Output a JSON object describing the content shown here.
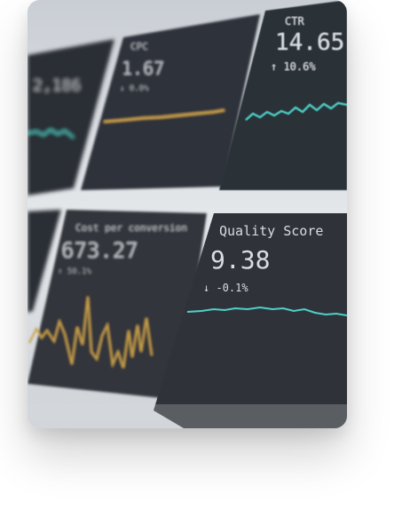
{
  "tiles": [
    {
      "id": "left-top",
      "value": "2,186"
    },
    {
      "id": "cpc",
      "title": "CPC",
      "value": "1.67",
      "change": "↓ 0.0%"
    },
    {
      "id": "ctr",
      "title": "CTR",
      "value": "14.65",
      "change": "↑ 10.6%"
    },
    {
      "id": "cost-per-conversion",
      "title": "Cost per conversion",
      "value": "673.27",
      "change": "↑ 50.1%"
    },
    {
      "id": "quality-score",
      "title": "Quality Score",
      "value": "9.38",
      "change": "↓ -0.1%"
    }
  ],
  "colors": {
    "panel": "#2d3138",
    "bezel": "#d9dde2",
    "text": "#d7dde2",
    "teal": "#4fd0c8",
    "gold": "#c8a04a"
  }
}
